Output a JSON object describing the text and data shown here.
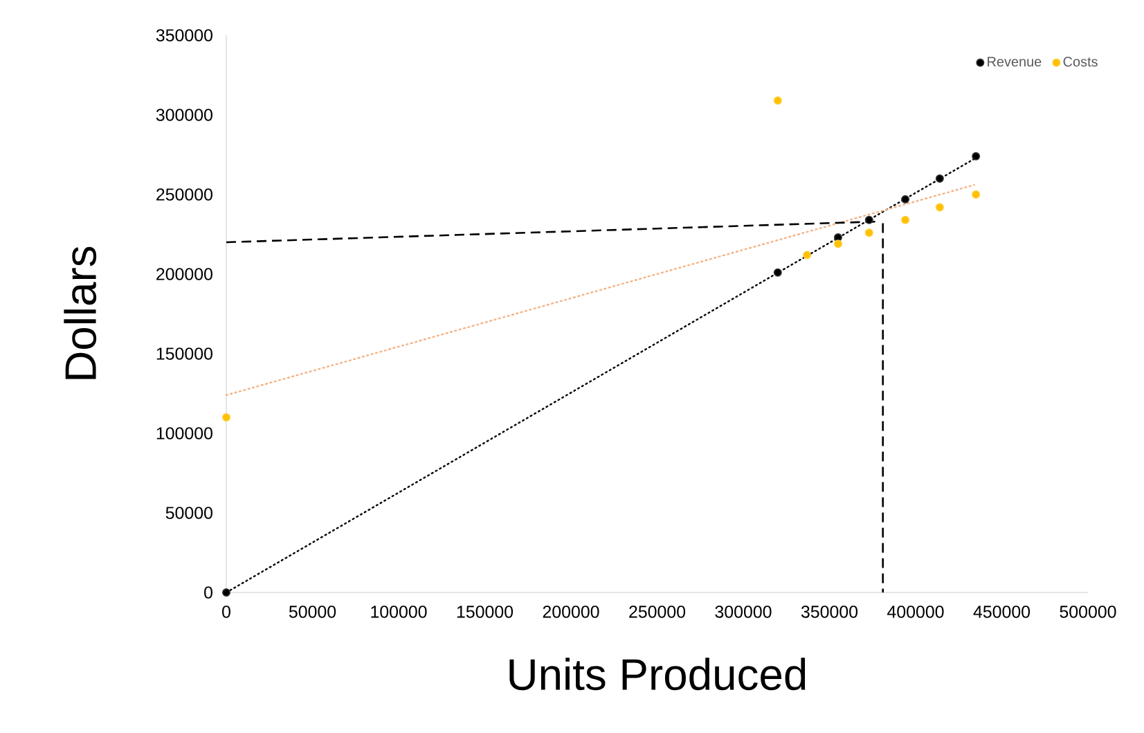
{
  "chart_data": {
    "type": "scatter",
    "xlabel": "Units Produced",
    "ylabel": "Dollars",
    "xlim": [
      0,
      500000
    ],
    "xticks": [
      0,
      50000,
      100000,
      150000,
      200000,
      250000,
      300000,
      350000,
      400000,
      450000,
      500000
    ],
    "ylim": [
      0,
      350000
    ],
    "yticks": [
      0,
      50000,
      100000,
      150000,
      200000,
      250000,
      300000,
      350000
    ],
    "grid": false,
    "legend": "top right",
    "marker": "circle",
    "series": [
      {
        "name": "Revenue",
        "color": "#000000",
        "x": [
          0,
          320000,
          355000,
          373000,
          394000,
          414000,
          435000
        ],
        "values": [
          0,
          201000,
          223000,
          234000,
          247000,
          260000,
          274000
        ]
      },
      {
        "name": "Costs",
        "color": "#ffc000",
        "x": [
          0,
          320000,
          337000,
          355000,
          373000,
          394000,
          414000,
          435000
        ],
        "values": [
          110000,
          309000,
          212000,
          219000,
          226000,
          234000,
          242000,
          250000
        ]
      },
      {
        "type": "line",
        "line_style": "dotted",
        "marker": "none",
        "color": "#000000",
        "x": [
          0,
          435000
        ],
        "values": [
          0,
          273000
        ]
      },
      {
        "type": "line",
        "line_style": "dotted",
        "marker": "none",
        "color": "#f4b183",
        "x": [
          0,
          434000
        ],
        "values": [
          124000,
          256000
        ]
      },
      {
        "type": "line",
        "line_style": "dashed",
        "marker": "none",
        "color": "#000000",
        "x": [
          0,
          378000
        ],
        "values": [
          220000,
          233000
        ]
      },
      {
        "type": "line",
        "line_style": "dashed",
        "marker": "none",
        "color": "#000000",
        "x": [
          381000,
          381000
        ],
        "values": [
          232000,
          0
        ]
      }
    ]
  }
}
